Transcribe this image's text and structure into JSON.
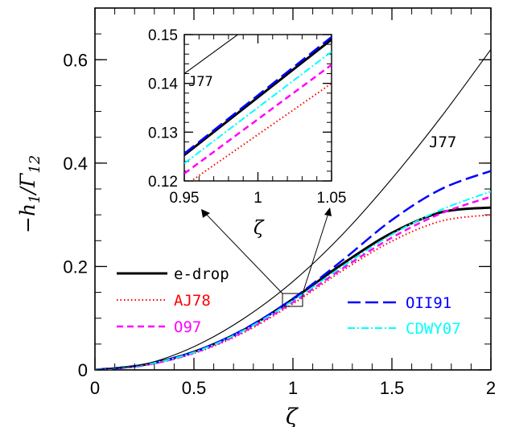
{
  "chart_data": [
    {
      "type": "line",
      "title": "",
      "xlabel": "ζ",
      "ylabel": "−h₁/Γ₁₂",
      "xlim": [
        0,
        2
      ],
      "ylim": [
        0,
        0.7
      ],
      "xticks": [
        "0",
        "0.5",
        "1",
        "1.5",
        "2"
      ],
      "yticks": [
        "0",
        "0.2",
        "0.4",
        "0.6"
      ],
      "grid": false,
      "legend_placement": "lower area (two columns)",
      "series": [
        {
          "name": "e-drop",
          "color": "#000000",
          "style": "solid-thick",
          "x": [
            0,
            0.25,
            0.5,
            0.75,
            1.0,
            1.25,
            1.5,
            1.75,
            2.0
          ],
          "y": [
            0,
            0.01,
            0.035,
            0.077,
            0.137,
            0.205,
            0.265,
            0.305,
            0.314
          ]
        },
        {
          "name": "AJ78",
          "color": "#ff0000",
          "style": "dotted",
          "x": [
            0,
            0.25,
            0.5,
            0.75,
            1.0,
            1.25,
            1.5,
            1.75,
            2.0
          ],
          "y": [
            0,
            0.009,
            0.032,
            0.072,
            0.128,
            0.192,
            0.249,
            0.288,
            0.3
          ]
        },
        {
          "name": "O97",
          "color": "#ff00ff",
          "style": "dashed",
          "x": [
            0,
            0.25,
            0.5,
            0.75,
            1.0,
            1.25,
            1.5,
            1.75,
            2.0
          ],
          "y": [
            0,
            0.009,
            0.033,
            0.074,
            0.131,
            0.196,
            0.256,
            0.303,
            0.335
          ]
        },
        {
          "name": "OII91",
          "color": "#0000ff",
          "style": "long-dashed",
          "x": [
            0,
            0.25,
            0.5,
            0.75,
            1.0,
            1.25,
            1.5,
            1.75,
            2.0
          ],
          "y": [
            0,
            0.01,
            0.035,
            0.078,
            0.138,
            0.212,
            0.29,
            0.35,
            0.385
          ]
        },
        {
          "name": "CDWY07",
          "color": "#00ffff",
          "style": "dash-dot",
          "x": [
            0,
            0.25,
            0.5,
            0.75,
            1.0,
            1.25,
            1.5,
            1.75,
            2.0
          ],
          "y": [
            0,
            0.01,
            0.034,
            0.076,
            0.134,
            0.2,
            0.262,
            0.31,
            0.345
          ]
        },
        {
          "name": "J77",
          "color": "#000000",
          "style": "solid-thin",
          "x": [
            0,
            0.25,
            0.5,
            0.75,
            1.0,
            1.25,
            1.5,
            1.75,
            2.0
          ],
          "y": [
            0,
            0.011,
            0.045,
            0.099,
            0.171,
            0.262,
            0.37,
            0.49,
            0.62
          ]
        }
      ]
    },
    {
      "type": "line",
      "title": "",
      "xlabel": "ζ",
      "ylabel": "",
      "xlim": [
        0.95,
        1.05
      ],
      "ylim": [
        0.12,
        0.15
      ],
      "xticks": [
        "0.95",
        "1",
        "1.05"
      ],
      "yticks": [
        "0.12",
        "0.13",
        "0.14",
        "0.15"
      ],
      "grid": false,
      "series": [
        {
          "name": "e-drop",
          "color": "#000000",
          "style": "solid-thick",
          "x": [
            0.95,
            1.05
          ],
          "y": [
            0.1253,
            0.149
          ]
        },
        {
          "name": "AJ78",
          "color": "#ff0000",
          "style": "dotted",
          "x": [
            0.95,
            1.05
          ],
          "y": [
            0.119,
            0.14
          ]
        },
        {
          "name": "O97",
          "color": "#ff00ff",
          "style": "dashed",
          "x": [
            0.95,
            1.05
          ],
          "y": [
            0.1215,
            0.1438
          ]
        },
        {
          "name": "OII91",
          "color": "#0000ff",
          "style": "long-dashed",
          "x": [
            0.95,
            1.05
          ],
          "y": [
            0.1256,
            0.1495
          ]
        },
        {
          "name": "CDWY07",
          "color": "#00ffff",
          "style": "dash-dot",
          "x": [
            0.95,
            1.05
          ],
          "y": [
            0.1236,
            0.1465
          ]
        },
        {
          "name": "J77",
          "color": "#000000",
          "style": "solid-thin",
          "x": [
            0.95,
            1.05
          ],
          "y": [
            0.142,
            0.164
          ]
        }
      ]
    }
  ],
  "labels": {
    "xlabel": "ζ",
    "ylabel_prefix": "−h",
    "ylabel_sub1": "1",
    "ylabel_mid": "/Γ",
    "ylabel_sub2": "12",
    "inset_xlabel": "ζ",
    "main_annotation": "J77",
    "inset_annotation": "J77"
  },
  "legend": [
    {
      "name": "e-drop",
      "color": "#000000"
    },
    {
      "name": "AJ78",
      "color": "#ff0000"
    },
    {
      "name": "O97",
      "color": "#ff00ff"
    },
    {
      "name": "OII91",
      "color": "#0000ff"
    },
    {
      "name": "CDWY07",
      "color": "#00ffff"
    }
  ]
}
